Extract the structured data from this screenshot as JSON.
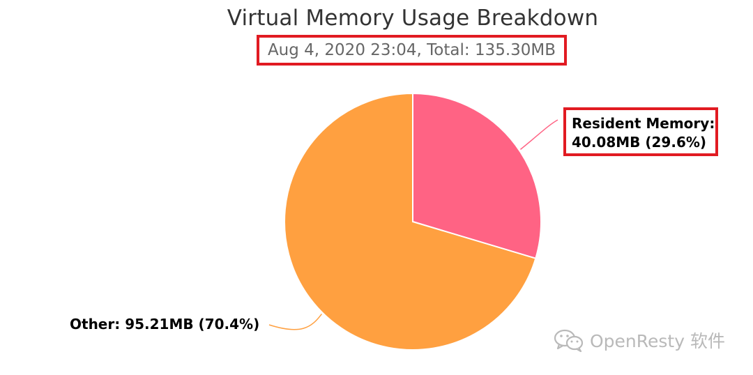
{
  "chart_data": {
    "type": "pie",
    "title": "Virtual Memory Usage Breakdown",
    "subtitle": "Aug 4, 2020 23:04, Total: 135.30MB",
    "slices": [
      {
        "name": "Resident Memory",
        "value_mb": 40.08,
        "percent": 29.6,
        "label_line1": "Resident Memory:",
        "label_line2": "40.08MB (29.6%)",
        "color": "#ff6384"
      },
      {
        "name": "Other",
        "value_mb": 95.21,
        "percent": 70.4,
        "label": "Other: 95.21MB (70.4%)",
        "color": "#ffa040"
      }
    ],
    "start_angle_deg": 0,
    "direction": "clockwise"
  },
  "highlight_color": "#e11b22",
  "watermark": {
    "icon": "wechat-icon",
    "text": "OpenResty 软件"
  }
}
